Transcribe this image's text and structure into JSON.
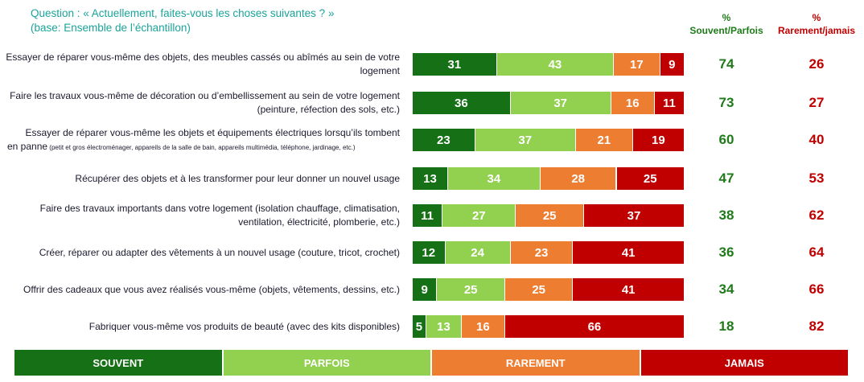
{
  "question": {
    "line1": "Question : « Actuellement, faites-vous les choses suivantes ? »",
    "line2": "(base: Ensemble de l’échantillon)"
  },
  "columns": {
    "often_pct": "%",
    "often_label": "Souvent/Parfois",
    "rarely_pct": "%",
    "rarely_label": "Rarement/jamais"
  },
  "colors": {
    "souvent": "#167016",
    "parfois": "#92d050",
    "rarement": "#ed7d31",
    "jamais": "#c00000"
  },
  "chart_data": {
    "type": "bar",
    "orientation": "horizontal",
    "stacked": true,
    "categories": [
      "Essayer de réparer vous-même des objets, des meubles cassés ou abîmés au sein de votre logement",
      "Faire les travaux vous-même de décoration ou d’embellissement au sein de votre logement (peinture, réfection des sols, etc.)",
      "Essayer de réparer vous-même les objets et équipements électriques lorsqu’ils tombent en panne (petit et gros électroménager, appareils de la salle de bain, appareils multimédia, téléphone, jardinage, etc.)",
      "Récupérer des objets et à les transformer pour leur donner un nouvel usage",
      "Faire des travaux importants dans votre logement (isolation chauffage, climatisation, ventilation, électricité, plomberie, etc.)",
      "Créer, réparer ou adapter des vêtements à un nouvel usage (couture, tricot, crochet)",
      "Offrir des cadeaux que vous avez réalisés vous-même (objets, vêtements, dessins, etc.)",
      "Fabriquer vous-même vos produits de beauté (avec des kits disponibles)"
    ],
    "label_lines": [
      {
        "lines": [
          "Essayer de réparer vous-même des objets, des meubles cassés ou abîmés au sein de votre",
          "logement"
        ],
        "small": ""
      },
      {
        "lines": [
          "Faire les travaux vous-même de décoration ou d’embellissement au sein de votre logement",
          "(peinture, réfection des sols, etc.)"
        ],
        "small": ""
      },
      {
        "lines": [
          "Essayer de réparer vous-même les objets et équipements électriques lorsqu’ils tombent",
          "en panne"
        ],
        "small": " (petit et gros électroménager, appareils de la salle de bain, appareils multimédia, téléphone, jardinage, etc.)"
      },
      {
        "lines": [
          "Récupérer des objets et à les transformer pour leur donner un nouvel usage"
        ],
        "small": ""
      },
      {
        "lines": [
          "Faire des travaux importants dans votre logement (isolation chauffage, climatisation,",
          "ventilation, électricité, plomberie, etc.)"
        ],
        "small": ""
      },
      {
        "lines": [
          "Créer, réparer ou adapter des vêtements à un nouvel usage (couture, tricot, crochet)"
        ],
        "small": ""
      },
      {
        "lines": [
          "Offrir des cadeaux que vous avez réalisés vous-même (objets, vêtements, dessins, etc.)"
        ],
        "small": ""
      },
      {
        "lines": [
          "Fabriquer vous-même vos produits de beauté (avec des kits disponibles)"
        ],
        "small": ""
      }
    ],
    "series": [
      {
        "name": "SOUVENT",
        "values": [
          31,
          36,
          23,
          13,
          11,
          12,
          9,
          5
        ]
      },
      {
        "name": "PARFOIS",
        "values": [
          43,
          37,
          37,
          34,
          27,
          24,
          25,
          13
        ]
      },
      {
        "name": "RAREMENT",
        "values": [
          17,
          16,
          21,
          28,
          25,
          23,
          25,
          16
        ]
      },
      {
        "name": "JAMAIS",
        "values": [
          9,
          11,
          19,
          25,
          37,
          41,
          41,
          66
        ]
      }
    ],
    "souvent_parfois": [
      74,
      73,
      60,
      47,
      38,
      36,
      34,
      18
    ],
    "rarement_jamais": [
      26,
      27,
      40,
      53,
      62,
      64,
      66,
      82
    ],
    "xlim": [
      0,
      100
    ],
    "legend": "bottom"
  }
}
